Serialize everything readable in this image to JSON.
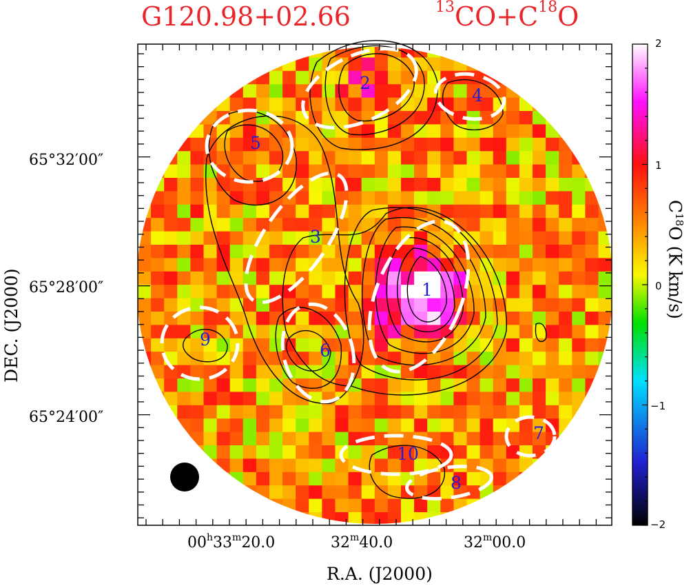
{
  "title": {
    "source": "G120.98+02.66",
    "line_main": "CO+C",
    "line_iso1": "13",
    "line_iso2": "18",
    "line_tail": "O"
  },
  "chart_data": {
    "type": "heatmap",
    "xlabel": "R.A. (J2000)",
    "ylabel": "DEC. (J2000)",
    "x_ticks": [
      {
        "h": "00",
        "m": "33",
        "s": "20.0"
      },
      {
        "m": "32",
        "s": "40.0"
      },
      {
        "m": "32",
        "s": "00.0"
      }
    ],
    "y_ticks": [
      "65°32′00″",
      "65°28′00″",
      "65°24′00″"
    ],
    "colorbar": {
      "label": "C18O (K km/s)",
      "label_pre": "C",
      "label_sup": "18",
      "label_post": "O (K km/s)",
      "range": [
        -2,
        2
      ],
      "ticks": [
        "2",
        "1",
        "0",
        "−1",
        "−2"
      ],
      "colors": [
        "#000000",
        "#2020d0",
        "#00e0ff",
        "#00e000",
        "#f8f800",
        "#ff9000",
        "#ff1010",
        "#ff10ff",
        "#ffffff"
      ]
    },
    "contours": "13CO integrated intensity",
    "sources": [
      {
        "id": "1"
      },
      {
        "id": "2"
      },
      {
        "id": "3"
      },
      {
        "id": "4"
      },
      {
        "id": "5"
      },
      {
        "id": "6"
      },
      {
        "id": "7"
      },
      {
        "id": "8"
      },
      {
        "id": "9"
      },
      {
        "id": "10"
      }
    ],
    "beam": "filled circle, lower left"
  }
}
